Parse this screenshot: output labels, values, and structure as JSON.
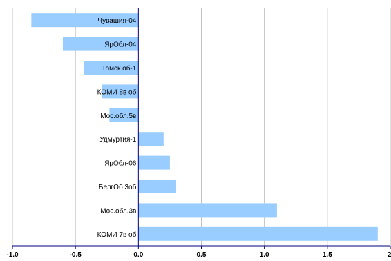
{
  "chart_data": {
    "type": "bar",
    "orientation": "horizontal",
    "categories": [
      "Чувашия-04",
      "ЯрОбл-04",
      "Томск.об-1",
      "КОМИ 8в об",
      "Мос.обл.5в",
      "Удмуртия-1",
      "ЯрОбл-06",
      "БелгОб 3об",
      "Мос.обл.3в",
      "КОМИ 7в об"
    ],
    "values": [
      -0.85,
      -0.6,
      -0.43,
      -0.29,
      -0.23,
      0.2,
      0.25,
      0.3,
      1.1,
      1.9
    ],
    "xlim": [
      -1.0,
      2.0
    ],
    "xticks": [
      -1.0,
      -0.5,
      0.0,
      0.5,
      1.0,
      1.5,
      2.0
    ],
    "xtick_labels": [
      "-1.0",
      "-0.5",
      "0.0",
      "0.5",
      "1.0",
      "1.5",
      "2."
    ],
    "title": "",
    "xlabel": "",
    "ylabel": "",
    "grid": "vertical",
    "legend": "none",
    "bar_color": "#99ccff",
    "grid_color": "#c0c0c0",
    "axis_color": "#000080"
  }
}
